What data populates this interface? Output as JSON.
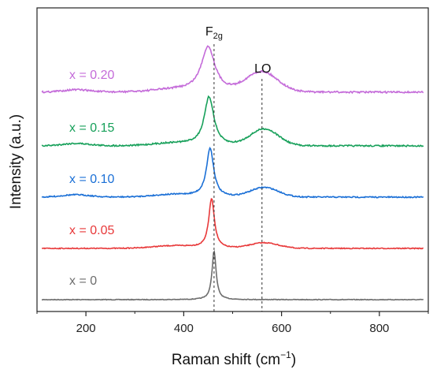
{
  "chart_data": {
    "type": "line",
    "xlabel": "Raman shift (cm",
    "xlabel_sup": "−1",
    "xlabel_end": ")",
    "ylabel": "Intensity (a.u.)",
    "xlim": [
      100,
      900
    ],
    "x_ticks": [
      200,
      400,
      600,
      800
    ],
    "grid": false,
    "legend": "labels placed beside each curve",
    "annotations": [
      {
        "name": "f2g",
        "text": "F",
        "sub": "2g",
        "x": 462
      },
      {
        "name": "lo",
        "text": "LO",
        "x": 560
      }
    ],
    "series": [
      {
        "name": "x = 0",
        "color": "#6d6d6d",
        "offset": 0,
        "peak": {
          "center": 462,
          "width": 5,
          "height": 62
        },
        "lo": {
          "center": 570,
          "width": 40,
          "height": 0
        }
      },
      {
        "name": "x = 0.05",
        "color": "#e8393a",
        "offset": 65,
        "peak": {
          "center": 457,
          "width": 7,
          "height": 63
        },
        "lo": {
          "center": 565,
          "width": 40,
          "height": 7
        }
      },
      {
        "name": "x = 0.10",
        "color": "#1a6fd6",
        "offset": 130,
        "peak": {
          "center": 454,
          "width": 9,
          "height": 62
        },
        "lo": {
          "center": 565,
          "width": 40,
          "height": 12
        }
      },
      {
        "name": "x = 0.15",
        "color": "#17a05a",
        "offset": 195,
        "peak": {
          "center": 452,
          "width": 12,
          "height": 62
        },
        "lo": {
          "center": 565,
          "width": 40,
          "height": 21
        }
      },
      {
        "name": "x = 0.20",
        "color": "#c46bd9",
        "offset": 263,
        "peak": {
          "center": 450,
          "width": 17,
          "height": 58
        },
        "lo": {
          "center": 560,
          "width": 45,
          "height": 25
        }
      }
    ]
  }
}
